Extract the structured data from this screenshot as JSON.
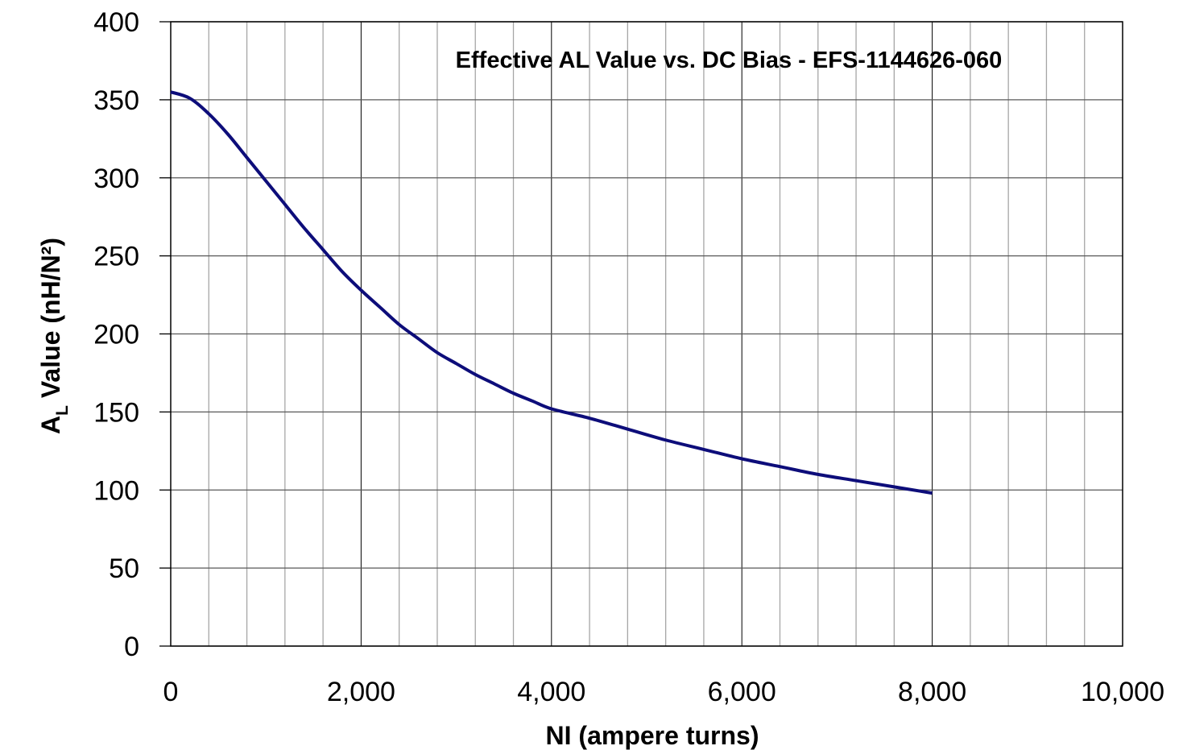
{
  "chart_data": {
    "type": "line",
    "title": "Effective AL Value vs. DC Bias - EFS-1144626-060",
    "xlabel": "NI (ampere turns)",
    "ylabel": {
      "main": "A",
      "sub": "L",
      "rest": " Value (nH/N²)"
    },
    "xlim": [
      0,
      10000
    ],
    "ylim": [
      0,
      400
    ],
    "x_major_ticks": [
      0,
      2000,
      4000,
      6000,
      8000,
      10000
    ],
    "x_tick_labels": [
      "0",
      "2,000",
      "4,000",
      "6,000",
      "8,000",
      "10,000"
    ],
    "x_minor_step": 400,
    "y_major_ticks": [
      0,
      50,
      100,
      150,
      200,
      250,
      300,
      350,
      400
    ],
    "y_tick_labels": [
      "0",
      "50",
      "100",
      "150",
      "200",
      "250",
      "300",
      "350",
      "400"
    ],
    "grid": true,
    "legend": "none",
    "series": [
      {
        "color": "#0d0d7a",
        "x": [
          0,
          200,
          400,
          600,
          800,
          1000,
          1200,
          1400,
          1600,
          1800,
          2000,
          2200,
          2400,
          2600,
          2800,
          3000,
          3200,
          3400,
          3600,
          3800,
          4000,
          4400,
          4800,
          5200,
          5600,
          6000,
          6400,
          6800,
          7200,
          7600,
          8000
        ],
        "y": [
          355,
          351,
          341,
          328,
          313,
          298,
          283,
          268,
          254,
          240,
          228,
          217,
          206,
          197,
          188,
          181,
          174,
          168,
          162,
          157,
          152,
          146,
          139,
          132,
          126,
          120,
          115,
          110,
          106,
          102,
          98
        ]
      }
    ]
  }
}
